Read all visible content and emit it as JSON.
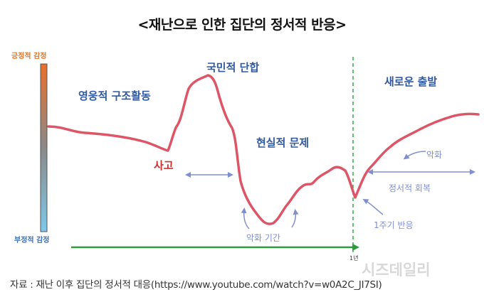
{
  "title": "<재난으로 인한 집단의 정서적 반응>",
  "axis": {
    "positive_label": "긍정적 감정",
    "negative_label": "부정적 감정",
    "time_marker": "1년"
  },
  "phases": {
    "rescue": "영웅적 구조활동",
    "unity": "국민적 단합",
    "reality": "현실적 문제",
    "new_start": "새로운 출발"
  },
  "event_label": "사고",
  "annotations": {
    "worsen_period": "악화 기간",
    "worsen": "악화",
    "recovery": "정서적 회복",
    "anniversary": "1주기 반응"
  },
  "source": "자료 : 재난 이후 집단의 정서적 대응(https://www.youtube.com/watch?v=w0A2C_JI7SI)",
  "watermark": "시즈데일리",
  "colors": {
    "curve": "#dd5566",
    "blue_text": "#2f5aa0",
    "event_red": "#d62c2c",
    "annotation": "#7f8fd0",
    "axis_green": "#2a9a3a",
    "gradient_top": "#e8702a",
    "gradient_bottom": "#7fc8e8"
  }
}
